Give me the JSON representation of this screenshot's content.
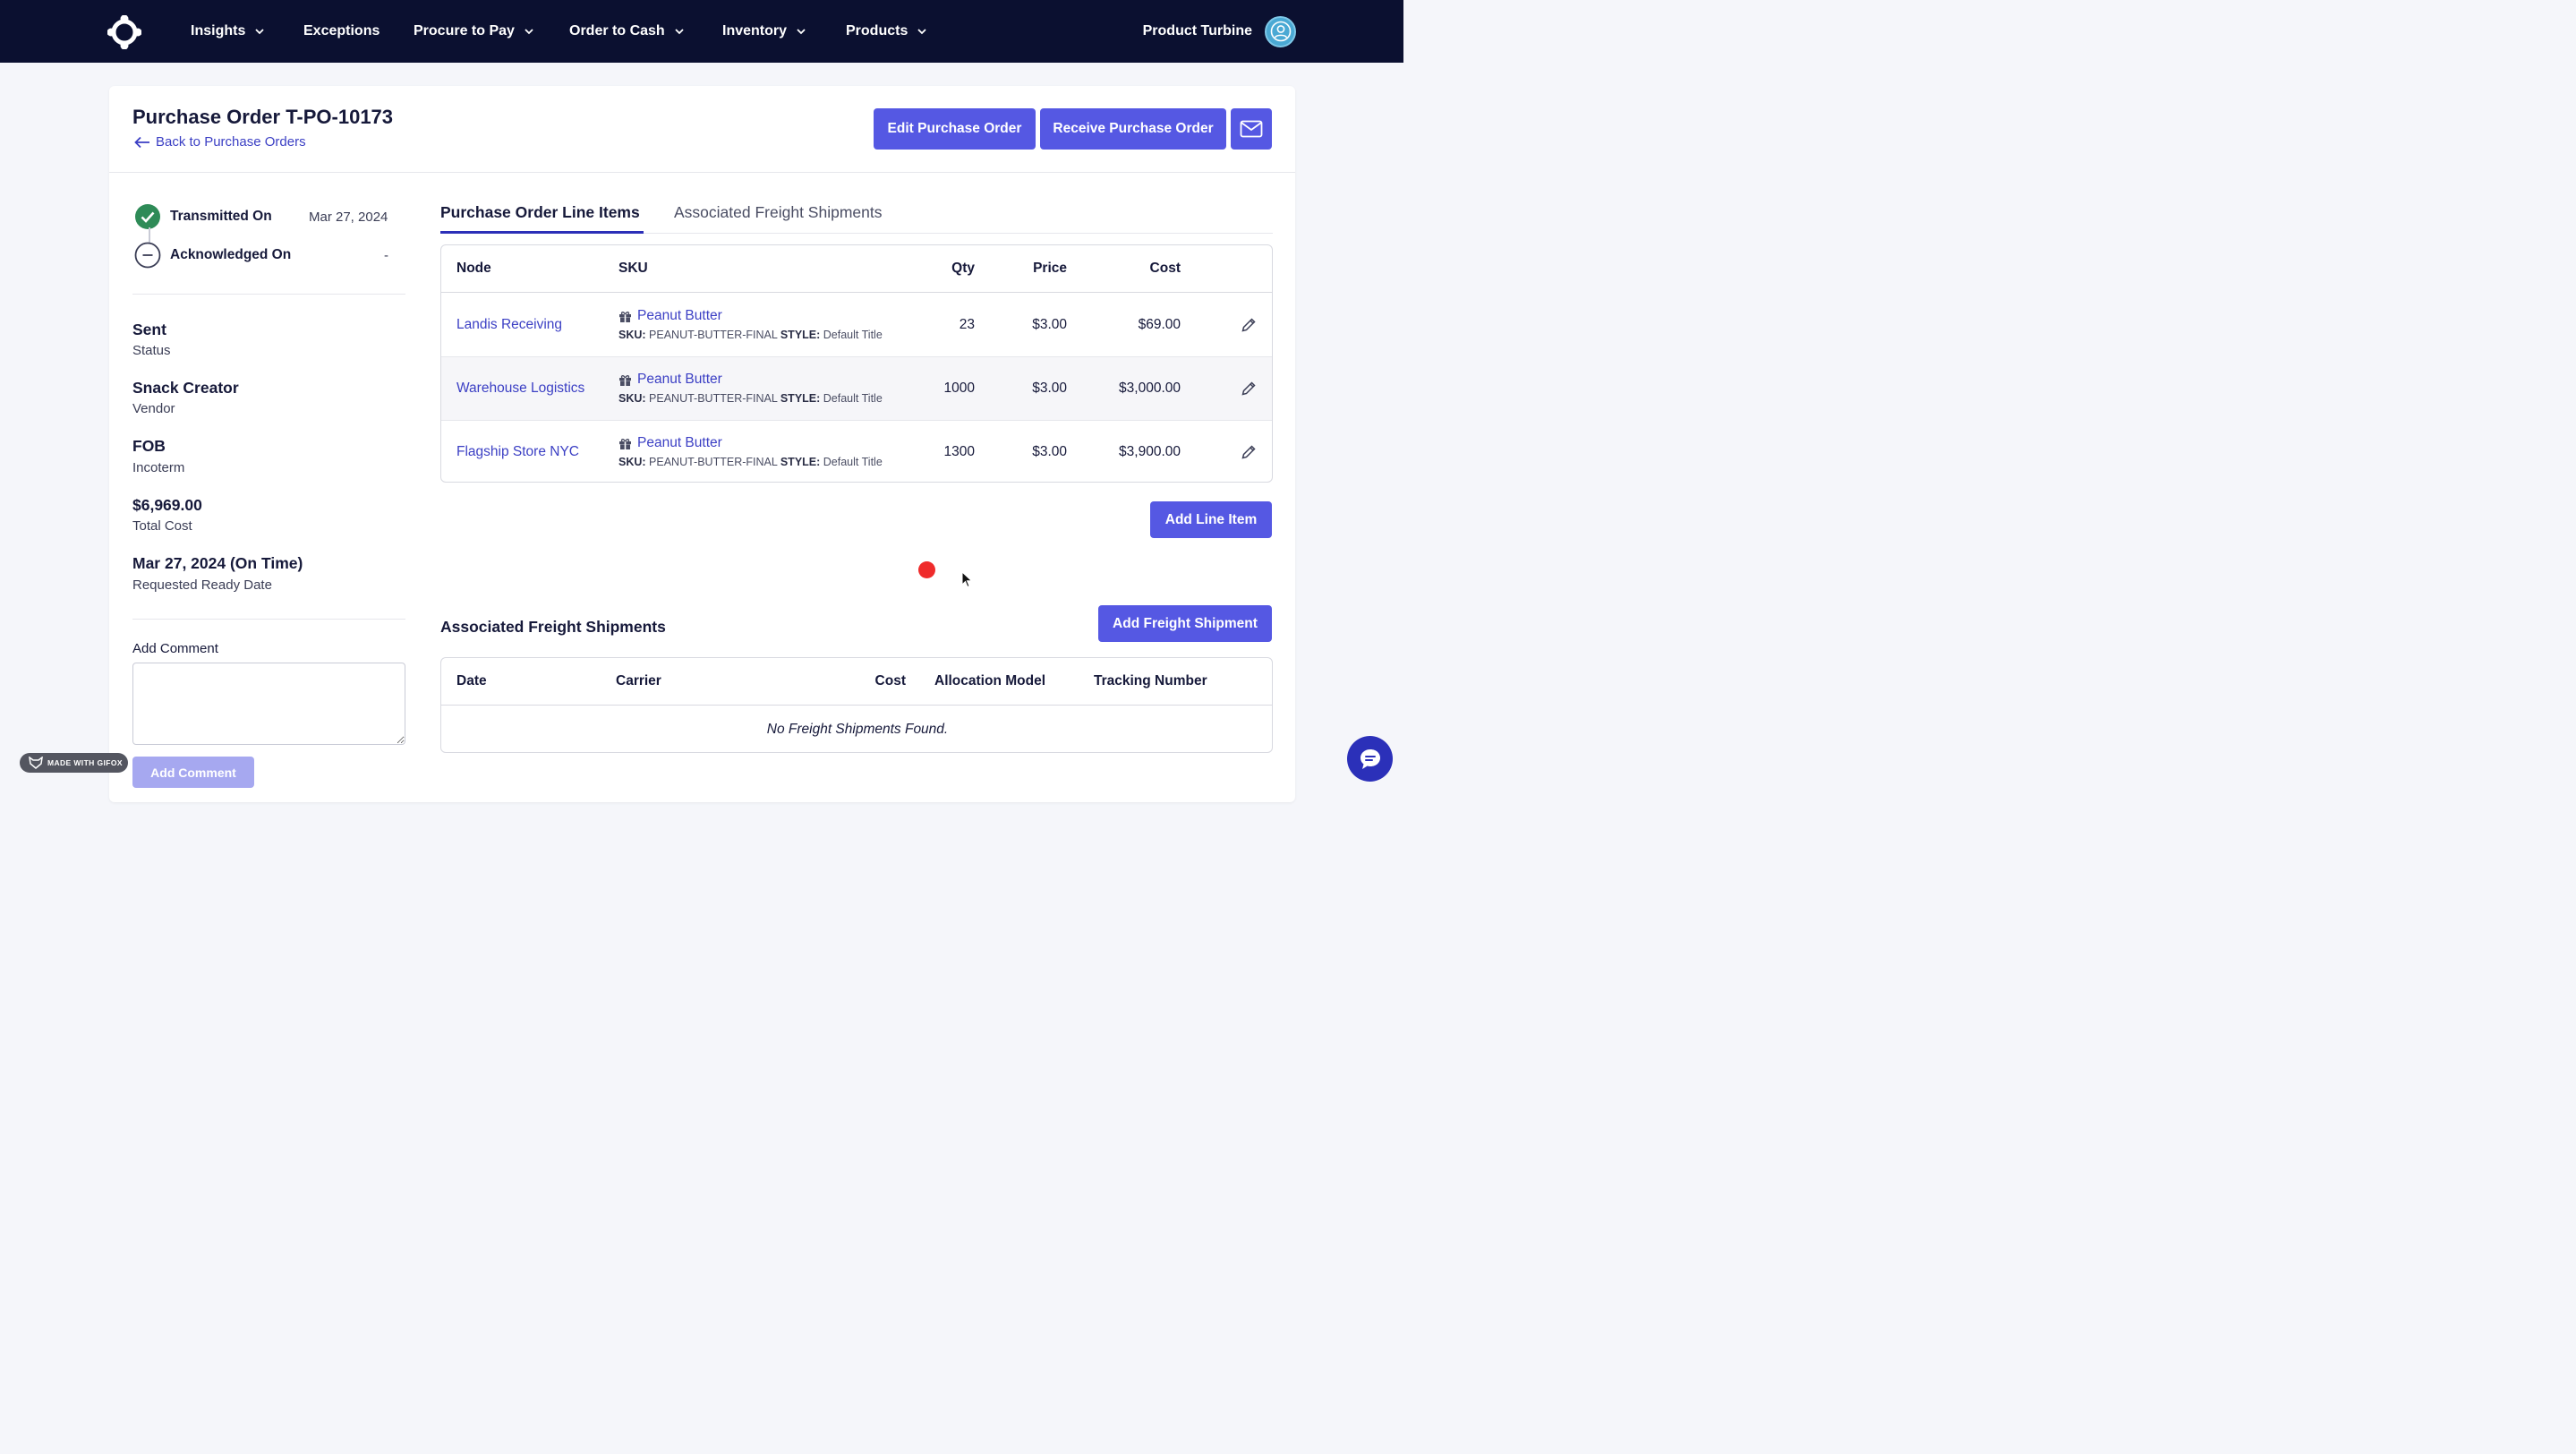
{
  "nav": {
    "items": [
      {
        "label": "Insights",
        "dropdown": true
      },
      {
        "label": "Exceptions",
        "dropdown": false
      },
      {
        "label": "Procure to Pay",
        "dropdown": true
      },
      {
        "label": "Order to Cash",
        "dropdown": true
      },
      {
        "label": "Inventory",
        "dropdown": true
      },
      {
        "label": "Products",
        "dropdown": true
      }
    ],
    "user_name": "Product Turbine",
    "logo_icon": "turbine-logo-icon",
    "avatar_icon": "user-avatar-icon"
  },
  "header": {
    "title": "Purchase Order T-PO-10173",
    "back_label": "Back to Purchase Orders",
    "edit_label": "Edit Purchase Order",
    "receive_label": "Receive Purchase Order",
    "mail_icon": "envelope-icon"
  },
  "timeline": {
    "transmitted_label": "Transmitted On",
    "transmitted_date": "Mar 27, 2024",
    "acknowledged_label": "Acknowledged On",
    "acknowledged_date": "-"
  },
  "details": {
    "status_value": "Sent",
    "status_key": "Status",
    "vendor_value": "Snack Creator",
    "vendor_key": "Vendor",
    "incoterm_value": "FOB",
    "incoterm_key": "Incoterm",
    "total_value": "$6,969.00",
    "total_key": "Total Cost",
    "ready_value": "Mar 27, 2024 (On Time)",
    "ready_key": "Requested Ready Date"
  },
  "comment": {
    "label": "Add Comment",
    "value": "",
    "button_label": "Add Comment"
  },
  "tabs": {
    "active": "Purchase Order Line Items",
    "inactive": "Associated Freight Shipments"
  },
  "line_items": {
    "headers": {
      "node": "Node",
      "sku": "SKU",
      "qty": "Qty",
      "price": "Price",
      "cost": "Cost"
    },
    "rows": [
      {
        "node": "Landis Receiving",
        "product": "Peanut Butter",
        "sku_label": "SKU:",
        "sku": "PEANUT-BUTTER-FINAL",
        "style_label": "STYLE:",
        "style": "Default Title",
        "qty": "23",
        "price": "$3.00",
        "cost": "$69.00"
      },
      {
        "node": "Warehouse Logistics",
        "product": "Peanut Butter",
        "sku_label": "SKU:",
        "sku": "PEANUT-BUTTER-FINAL",
        "style_label": "STYLE:",
        "style": "Default Title",
        "qty": "1000",
        "price": "$3.00",
        "cost": "$3,000.00"
      },
      {
        "node": "Flagship Store NYC",
        "product": "Peanut Butter",
        "sku_label": "SKU:",
        "sku": "PEANUT-BUTTER-FINAL",
        "style_label": "STYLE:",
        "style": "Default Title",
        "qty": "1300",
        "price": "$3.00",
        "cost": "$3,900.00"
      }
    ],
    "add_label": "Add Line Item"
  },
  "freight": {
    "title": "Associated Freight Shipments",
    "add_label": "Add Freight Shipment",
    "headers": {
      "date": "Date",
      "carrier": "Carrier",
      "cost": "Cost",
      "allocation": "Allocation Model",
      "tracking": "Tracking Number"
    },
    "empty_message": "No Freight Shipments Found."
  },
  "overlay": {
    "gifox_label": "MADE WITH GIFOX",
    "chat_icon": "chat-bubble-icon"
  },
  "colors": {
    "nav_bg": "#0b1030",
    "primary": "#5558e3",
    "link": "#3b3fc4",
    "success": "#2e8b57"
  }
}
